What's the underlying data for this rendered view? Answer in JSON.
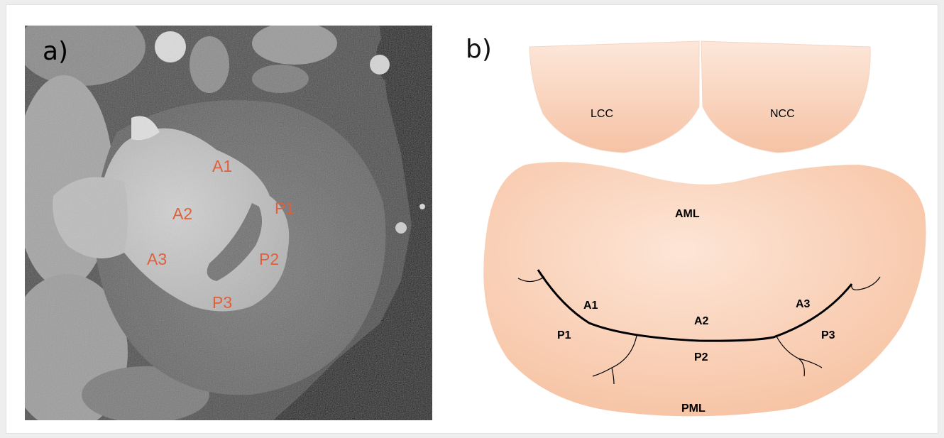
{
  "panel_a": {
    "label": "a)",
    "segments": [
      "A1",
      "A2",
      "A3",
      "P1",
      "P2",
      "P3"
    ]
  },
  "panel_b": {
    "label": "b)",
    "cusps": [
      "LCC",
      "NCC"
    ],
    "leaflets": {
      "anterior": "AML",
      "posterior": "PML"
    },
    "segments": {
      "a1": "A1",
      "a2": "A2",
      "a3": "A3",
      "p1": "P1",
      "p2": "P2",
      "p3": "P3"
    }
  },
  "colors": {
    "segment_label": "#e0603c",
    "leaflet_fill": "#f7c5a6",
    "cusp_fill": "#f8ceb3",
    "coaptation_line": "#000000"
  }
}
